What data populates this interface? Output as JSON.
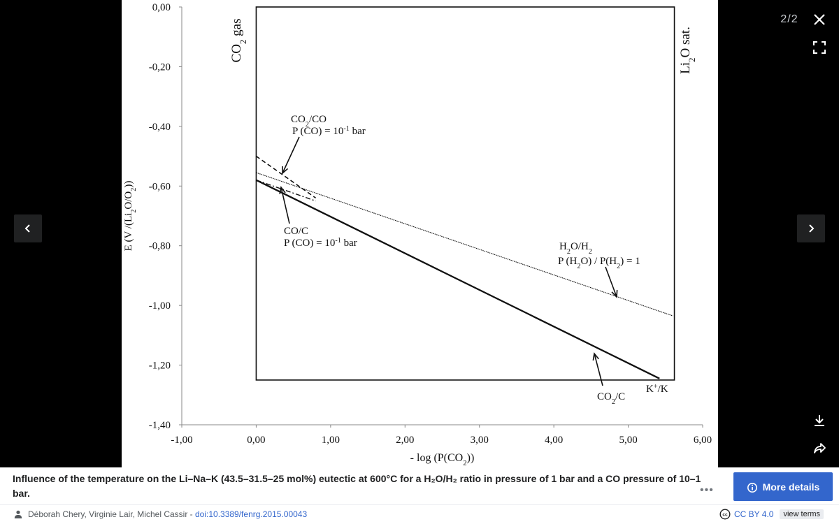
{
  "viewer": {
    "counter": "2/2",
    "controls": {
      "close": "close-icon",
      "fullscreen": "fullscreen-icon",
      "previous": "chevron-left-icon",
      "next": "chevron-right-icon",
      "download": "download-icon",
      "share": "share-icon"
    }
  },
  "chart_data": {
    "type": "line",
    "title": "",
    "xlabel": "- log (P(CO₂))",
    "ylabel": "E (V /(Li₂O/O₂))",
    "xlim": [
      -1.0,
      6.0
    ],
    "ylim": [
      -1.4,
      0.0
    ],
    "x_ticks": [
      "-1,00",
      "0,00",
      "1,00",
      "2,00",
      "3,00",
      "4,00",
      "5,00",
      "6,00"
    ],
    "y_ticks": [
      "0,00",
      "-0,20",
      "-0,40",
      "-0,60",
      "-0,80",
      "-1,00",
      "-1,20",
      "-1,40"
    ],
    "domain": {
      "x": [
        0.0,
        5.62
      ],
      "y": [
        -1.25,
        0.0
      ]
    },
    "series": [
      {
        "name": "CO₂/C",
        "style": "solid",
        "x": [
          0.0,
          5.42
        ],
        "y": [
          -0.58,
          -1.245
        ]
      },
      {
        "name": "H₂O/H₂",
        "style": "dotted-thin",
        "x": [
          0.0,
          5.6
        ],
        "y": [
          -0.555,
          -1.035
        ]
      },
      {
        "name": "CO₂/CO",
        "style": "dashed",
        "x": [
          0.0,
          0.8
        ],
        "y": [
          -0.5,
          -0.64
        ]
      },
      {
        "name": "CO/C",
        "style": "dash-dot",
        "x": [
          0.0,
          0.8
        ],
        "y": [
          -0.58,
          -0.65
        ]
      }
    ],
    "annotations": [
      {
        "id": "co2-gas",
        "text": "CO₂ gas",
        "rotated": true
      },
      {
        "id": "li2o-sat",
        "text": "Li₂O sat.",
        "rotated": true
      },
      {
        "id": "co2-co",
        "lines": [
          "CO₂/CO",
          "P (CO) = 10⁻¹ bar"
        ]
      },
      {
        "id": "co-c",
        "lines": [
          "CO/C",
          "P (CO) = 10⁻¹ bar"
        ]
      },
      {
        "id": "h2o-h2",
        "lines": [
          "H₂O/H₂",
          "P (H₂O) / P(H₂) = 1"
        ]
      },
      {
        "id": "co2-c",
        "text": "CO₂/C"
      },
      {
        "id": "k-k",
        "text": "K⁺/K"
      }
    ]
  },
  "panel": {
    "caption": "Influence of the temperature on the Li–Na–K (43.5–31.5–25 mol%) eutectic at 600°C for a H₂O/H₂ ratio in pressure of 1 bar and a CO pressure of 10–1 bar.",
    "more_details": "More details",
    "authors": "Déborah Chery, Virginie Lair, Michel Cassir",
    "separator": " - ",
    "doi": "doi:10.3389/fenrg.2015.00043",
    "license": "CC BY 4.0",
    "terms": "view terms"
  }
}
